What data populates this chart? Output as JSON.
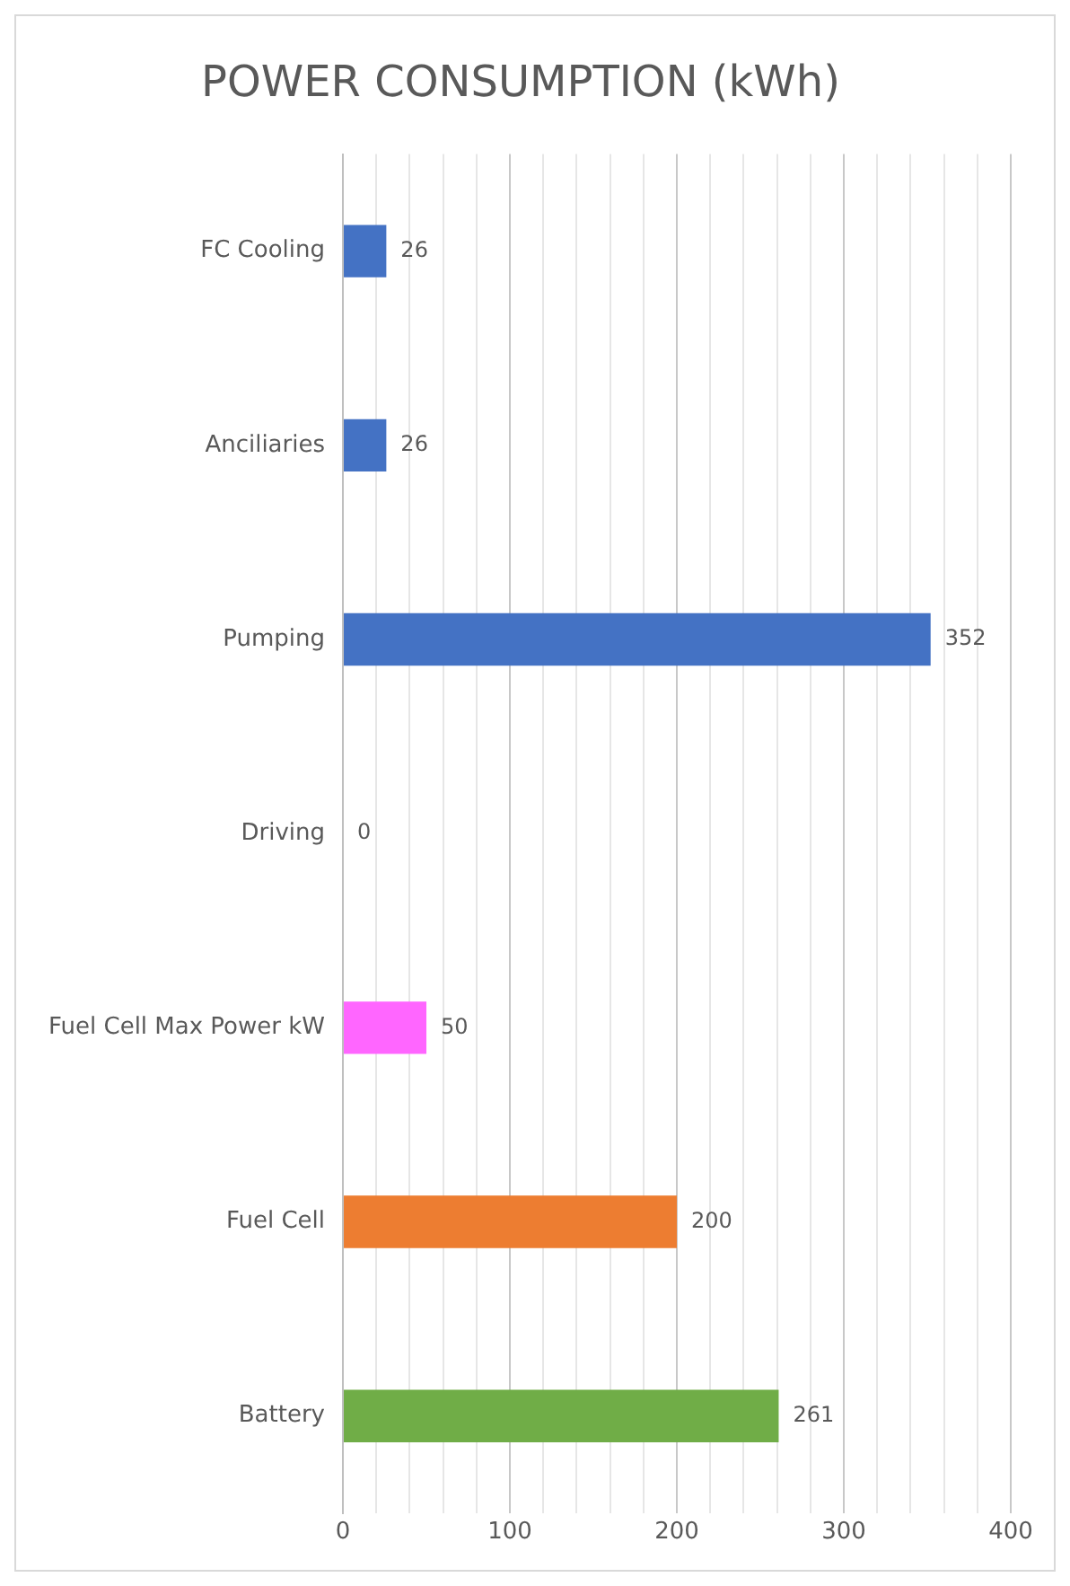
{
  "chart_data": {
    "type": "bar",
    "orientation": "horizontal",
    "title": "POWER CONSUMPTION (kWh)",
    "categories": [
      "FC Cooling",
      "Anciliaries",
      "Pumping",
      "Driving",
      "Fuel Cell Max Power kW",
      "Fuel Cell",
      "Battery"
    ],
    "values": [
      26,
      26,
      352,
      0,
      50,
      200,
      261
    ],
    "colors": [
      "#4472c4",
      "#4472c4",
      "#4472c4",
      "#4472c4",
      "#ff66ff",
      "#ed7d31",
      "#70ad47"
    ],
    "xlim": [
      0,
      400
    ],
    "xticks": [
      0,
      {
        "value": 20,
        "label": null
      },
      {
        "value": 40,
        "label": null
      },
      {
        "value": 60,
        "label": null
      },
      {
        "value": 80,
        "label": null
      },
      100,
      {
        "value": 120,
        "label": null
      },
      {
        "value": 140,
        "label": null
      },
      {
        "value": 160,
        "label": null
      },
      {
        "value": 180,
        "label": null
      },
      200,
      {
        "value": 220,
        "label": null
      },
      {
        "value": 240,
        "label": null
      },
      {
        "value": 260,
        "label": null
      },
      {
        "value": 280,
        "label": null
      },
      300,
      {
        "value": 320,
        "label": null
      },
      {
        "value": 340,
        "label": null
      },
      {
        "value": 360,
        "label": null
      },
      {
        "value": 380,
        "label": null
      },
      400
    ],
    "grid": "x",
    "data_labels": true,
    "legend": false
  }
}
